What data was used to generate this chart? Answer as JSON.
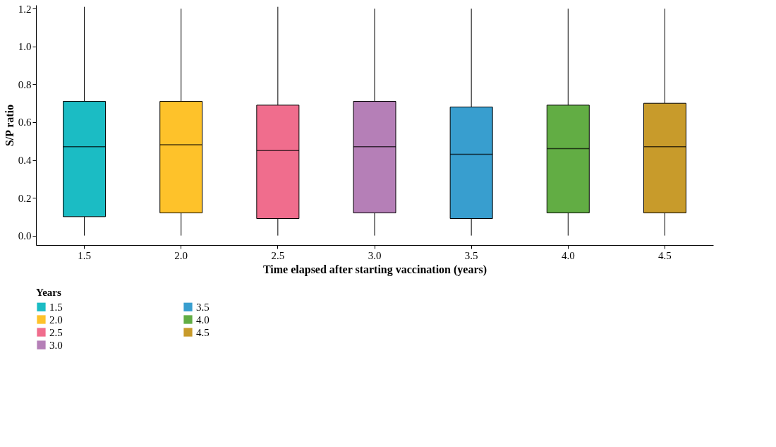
{
  "chart_data": {
    "type": "box",
    "xlabel": "Time elapsed after starting vaccination (years)",
    "ylabel": "S/P ratio",
    "legend_title": "Years",
    "legend": "bottom left",
    "grid": false,
    "categories": [
      "1.5",
      "2.0",
      "2.5",
      "3.0",
      "3.5",
      "4.0",
      "4.5"
    ],
    "series": [
      {
        "name": "1.5",
        "color": "#1bbcc4",
        "boxes": [
          {
            "low": 0,
            "q1": 0.1,
            "median": 0.47,
            "q3": 0.71,
            "high": 1.21
          },
          null,
          null,
          null,
          null,
          null,
          null
        ]
      },
      {
        "name": "2.0",
        "color": "#fec22a",
        "boxes": [
          null,
          {
            "low": 0,
            "q1": 0.12,
            "median": 0.48,
            "q3": 0.71,
            "high": 1.2
          },
          null,
          null,
          null,
          null,
          null
        ]
      },
      {
        "name": "2.5",
        "color": "#f06d8d",
        "boxes": [
          null,
          null,
          {
            "low": 0,
            "q1": 0.09,
            "median": 0.45,
            "q3": 0.69,
            "high": 1.21
          },
          null,
          null,
          null,
          null
        ]
      },
      {
        "name": "3.0",
        "color": "#b57fb7",
        "boxes": [
          null,
          null,
          null,
          {
            "low": 0,
            "q1": 0.12,
            "median": 0.47,
            "q3": 0.71,
            "high": 1.2
          },
          null,
          null,
          null
        ]
      },
      {
        "name": "3.5",
        "color": "#389ecf",
        "boxes": [
          null,
          null,
          null,
          null,
          {
            "low": 0,
            "q1": 0.09,
            "median": 0.43,
            "q3": 0.68,
            "high": 1.2
          },
          null,
          null
        ]
      },
      {
        "name": "4.0",
        "color": "#62ad44",
        "boxes": [
          null,
          null,
          null,
          null,
          null,
          {
            "low": 0,
            "q1": 0.12,
            "median": 0.46,
            "q3": 0.69,
            "high": 1.2
          },
          null
        ]
      },
      {
        "name": "4.5",
        "color": "#c89b2b",
        "boxes": [
          null,
          null,
          null,
          null,
          null,
          null,
          {
            "low": 0,
            "q1": 0.12,
            "median": 0.47,
            "q3": 0.7,
            "high": 1.2
          }
        ]
      }
    ],
    "ylim": [
      -0.05,
      1.22
    ],
    "yticks": [
      {
        "value": 0,
        "label": "0.0"
      },
      0.2,
      0.4,
      0.6,
      0.8,
      {
        "value": 1,
        "label": "1.0"
      },
      1.2
    ]
  }
}
